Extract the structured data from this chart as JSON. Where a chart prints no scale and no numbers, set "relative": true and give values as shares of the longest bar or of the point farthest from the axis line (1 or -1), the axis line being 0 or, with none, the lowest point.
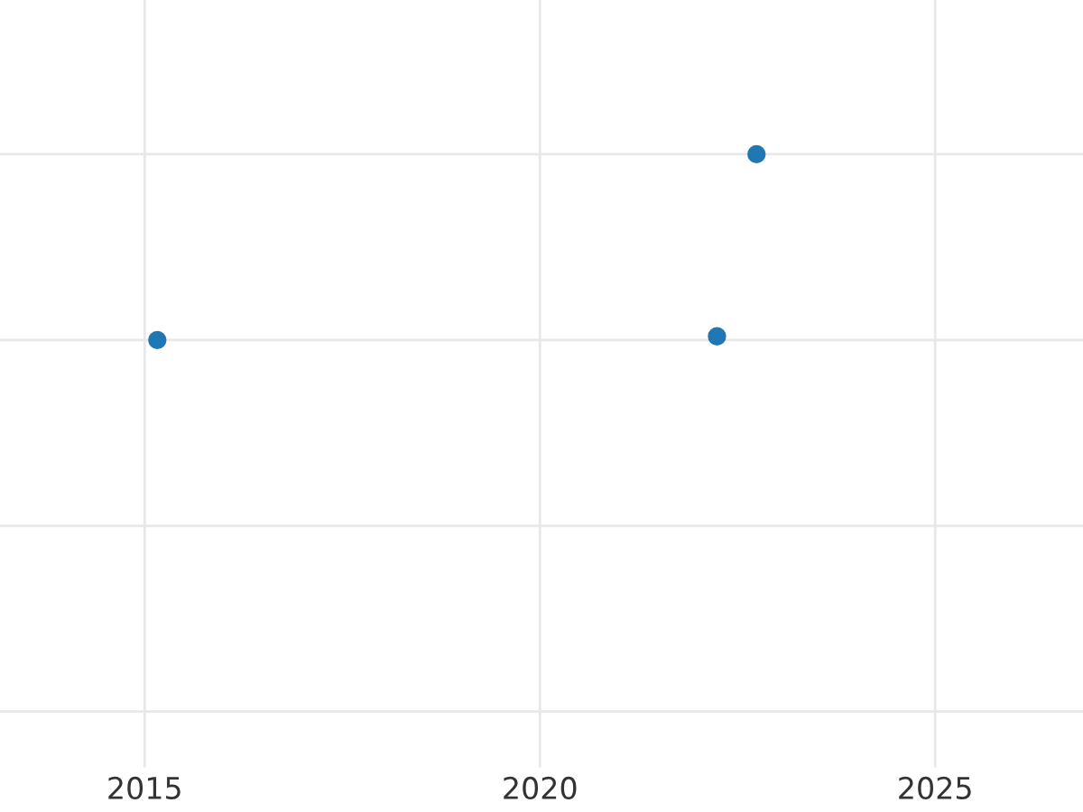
{
  "chart_data": {
    "type": "scatter",
    "x": [
      2015.16,
      2022.24,
      2022.74
    ],
    "values": [
      0,
      0.02,
      1
    ],
    "color": "#1f77b4",
    "relative": true,
    "xlim": [
      2013.17,
      2026.87
    ],
    "xticks": [
      2015,
      2020,
      2025
    ],
    "grid": true,
    "marker": "circle"
  }
}
